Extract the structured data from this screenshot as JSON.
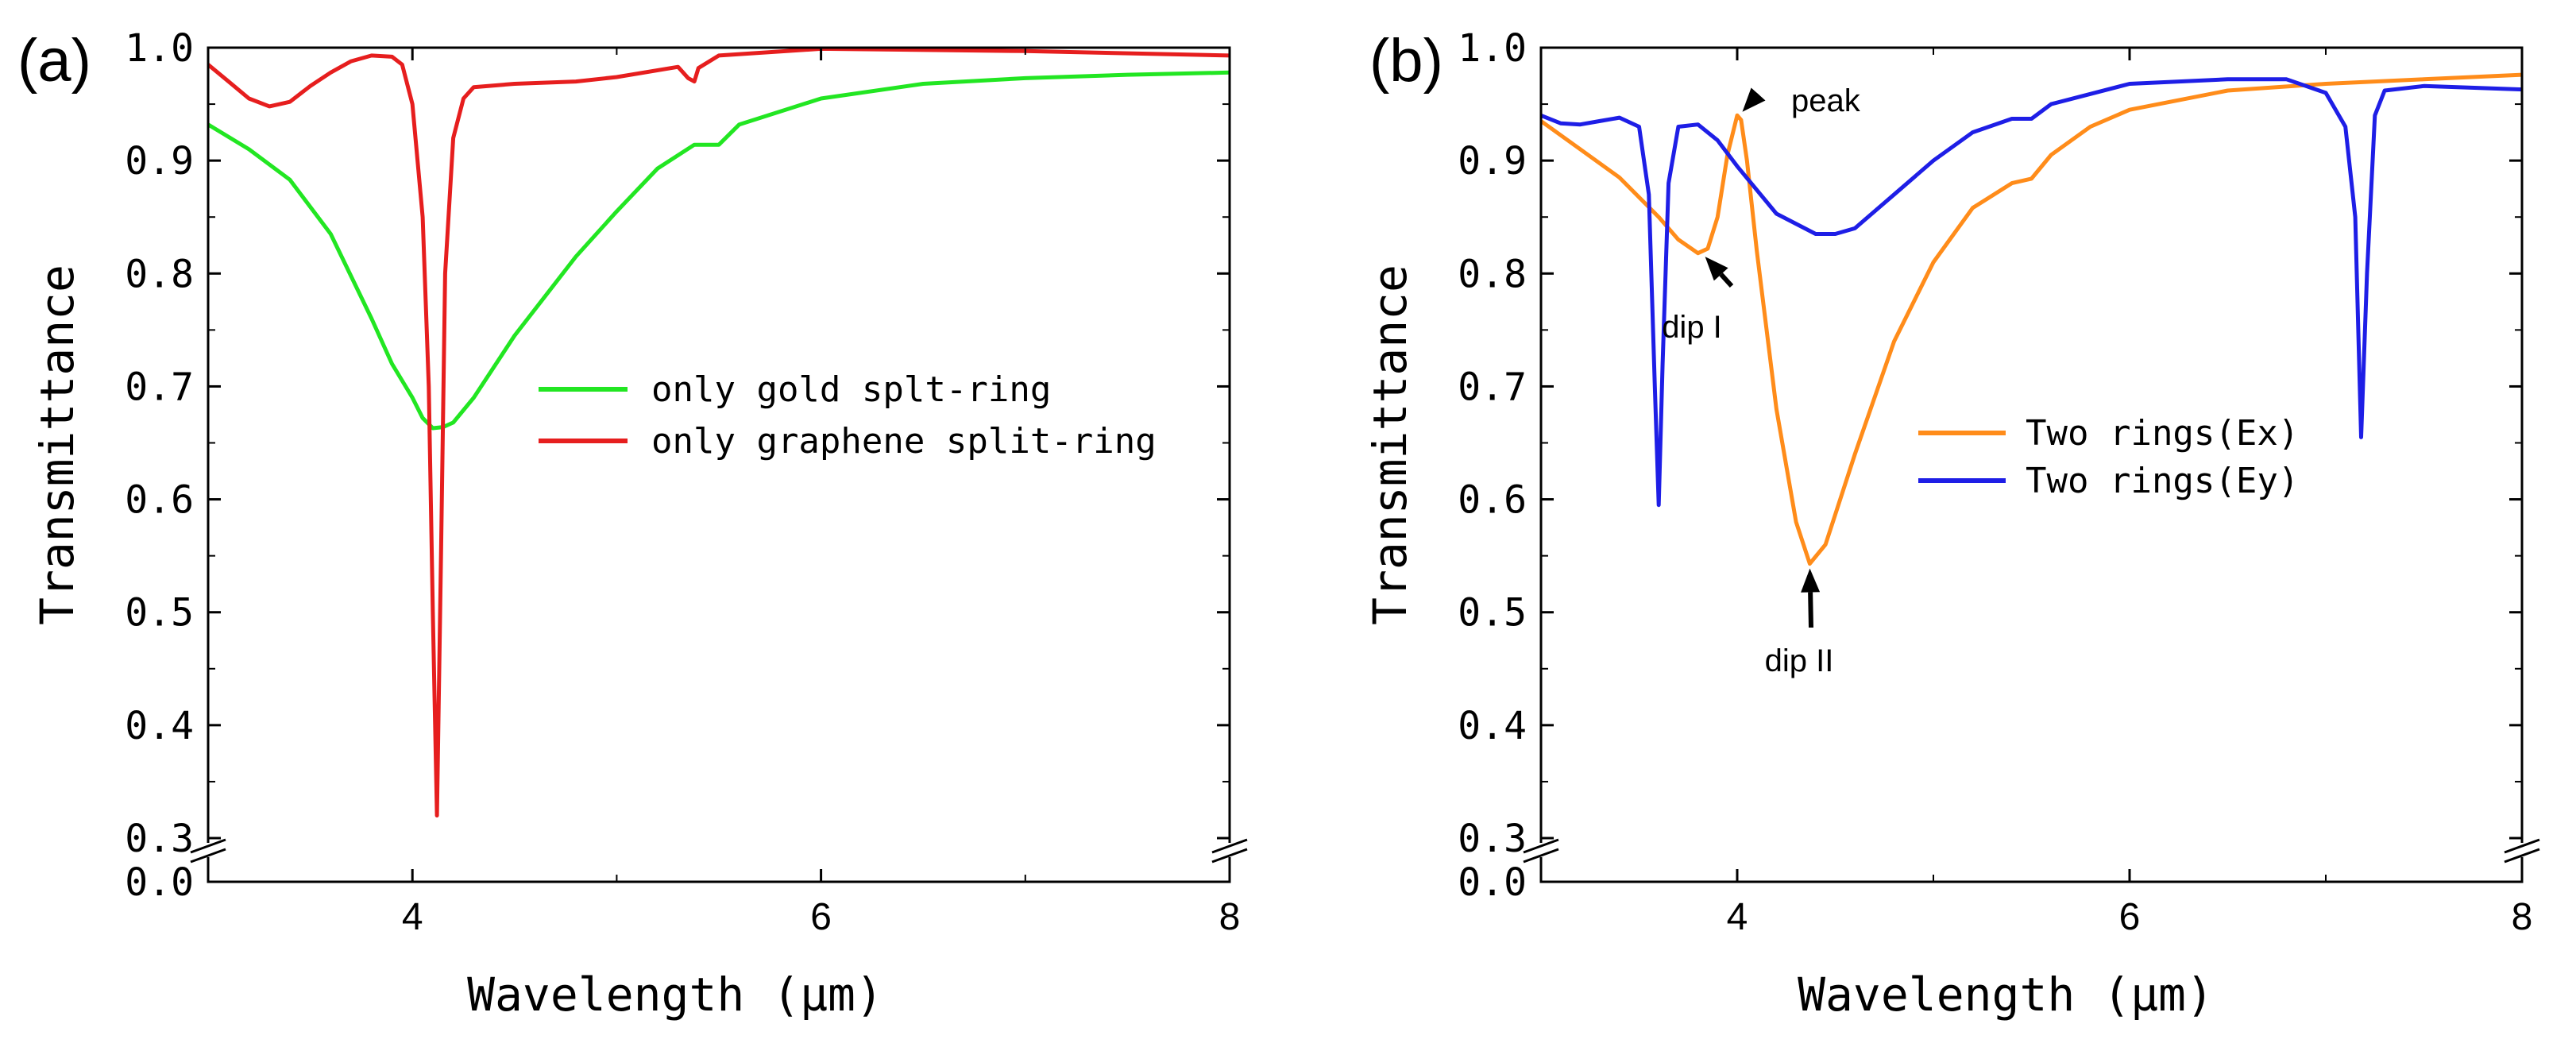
{
  "chart_data": [
    {
      "panel_label": "(a)",
      "type": "line",
      "xlabel": "Wavelength (μm)",
      "ylabel": "Transmittance",
      "xlim": [
        3,
        8
      ],
      "ylim_upper": [
        0.3,
        1.0
      ],
      "ylim_lower": [
        0.0,
        0.0
      ],
      "axis_break": true,
      "x_ticks": [
        4,
        6,
        8
      ],
      "x_tick_labels": [
        "4",
        "6",
        "8"
      ],
      "y_ticks": [
        0.0,
        0.3,
        0.4,
        0.5,
        0.6,
        0.7,
        0.8,
        0.9,
        1.0
      ],
      "y_tick_labels": [
        "0.0",
        "0.3",
        "0.4",
        "0.5",
        "0.6",
        "0.7",
        "0.8",
        "0.9",
        "1.0"
      ],
      "legend": {
        "placement": "center-right",
        "entries": [
          "only gold splt-ring",
          "only graphene split-ring"
        ]
      },
      "series": [
        {
          "name": "only gold splt-ring",
          "color": "#22e622",
          "x": [
            3.0,
            3.2,
            3.4,
            3.6,
            3.8,
            3.9,
            4.0,
            4.05,
            4.1,
            4.15,
            4.2,
            4.3,
            4.5,
            4.8,
            5.0,
            5.2,
            5.38,
            5.5,
            5.6,
            6.0,
            6.5,
            7.0,
            7.5,
            8.0
          ],
          "y": [
            0.932,
            0.91,
            0.883,
            0.835,
            0.76,
            0.72,
            0.69,
            0.672,
            0.663,
            0.664,
            0.668,
            0.69,
            0.745,
            0.815,
            0.855,
            0.893,
            0.914,
            0.914,
            0.932,
            0.955,
            0.968,
            0.973,
            0.976,
            0.978
          ]
        },
        {
          "name": "only graphene split-ring",
          "color": "#e61e1e",
          "x": [
            3.0,
            3.1,
            3.2,
            3.3,
            3.4,
            3.5,
            3.6,
            3.7,
            3.8,
            3.9,
            3.95,
            4.0,
            4.05,
            4.08,
            4.1,
            4.12,
            4.14,
            4.16,
            4.2,
            4.25,
            4.3,
            4.5,
            4.8,
            5.0,
            5.3,
            5.35,
            5.38,
            5.4,
            5.5,
            6.0,
            7.0,
            8.0
          ],
          "y": [
            0.985,
            0.97,
            0.955,
            0.948,
            0.952,
            0.966,
            0.978,
            0.988,
            0.993,
            0.992,
            0.985,
            0.95,
            0.85,
            0.7,
            0.5,
            0.32,
            0.55,
            0.8,
            0.92,
            0.955,
            0.965,
            0.968,
            0.97,
            0.974,
            0.983,
            0.973,
            0.97,
            0.982,
            0.993,
            0.999,
            0.997,
            0.993
          ]
        }
      ],
      "annotations": []
    },
    {
      "panel_label": "(b)",
      "type": "line",
      "xlabel": "Wavelength (μm)",
      "ylabel": "Transmittance",
      "xlim": [
        3,
        8
      ],
      "ylim_upper": [
        0.3,
        1.0
      ],
      "ylim_lower": [
        0.0,
        0.0
      ],
      "axis_break": true,
      "x_ticks": [
        4,
        6,
        8
      ],
      "x_tick_labels": [
        "4",
        "6",
        "8"
      ],
      "y_ticks": [
        0.0,
        0.3,
        0.4,
        0.5,
        0.6,
        0.7,
        0.8,
        0.9,
        1.0
      ],
      "y_tick_labels": [
        "0.0",
        "0.3",
        "0.4",
        "0.5",
        "0.6",
        "0.7",
        "0.8",
        "0.9",
        "1.0"
      ],
      "legend": {
        "placement": "center-right",
        "entries": [
          "Two rings(Ex)",
          "Two rings(Ey)"
        ]
      },
      "series": [
        {
          "name": "Two rings(Ex)",
          "color": "#ff8c1a",
          "x": [
            3.0,
            3.2,
            3.4,
            3.6,
            3.7,
            3.8,
            3.85,
            3.9,
            3.95,
            4.0,
            4.02,
            4.05,
            4.1,
            4.2,
            4.3,
            4.37,
            4.45,
            4.6,
            4.8,
            5.0,
            5.2,
            5.4,
            5.5,
            5.6,
            5.8,
            6.0,
            6.5,
            7.0,
            7.5,
            8.0
          ],
          "y": [
            0.935,
            0.91,
            0.885,
            0.85,
            0.83,
            0.818,
            0.822,
            0.85,
            0.905,
            0.94,
            0.936,
            0.9,
            0.82,
            0.68,
            0.58,
            0.543,
            0.56,
            0.64,
            0.74,
            0.81,
            0.858,
            0.88,
            0.884,
            0.905,
            0.93,
            0.945,
            0.962,
            0.968,
            0.972,
            0.976
          ]
        },
        {
          "name": "Two rings(Ey)",
          "color": "#1e1ee6",
          "x": [
            3.0,
            3.1,
            3.2,
            3.3,
            3.4,
            3.5,
            3.55,
            3.58,
            3.6,
            3.62,
            3.65,
            3.7,
            3.8,
            3.9,
            4.0,
            4.2,
            4.4,
            4.5,
            4.6,
            4.8,
            5.0,
            5.2,
            5.4,
            5.5,
            5.6,
            6.0,
            6.5,
            6.8,
            7.0,
            7.1,
            7.15,
            7.18,
            7.21,
            7.25,
            7.3,
            7.5,
            8.0
          ],
          "y": [
            0.94,
            0.933,
            0.932,
            0.935,
            0.938,
            0.93,
            0.87,
            0.7,
            0.595,
            0.72,
            0.88,
            0.93,
            0.932,
            0.918,
            0.895,
            0.853,
            0.835,
            0.835,
            0.84,
            0.87,
            0.9,
            0.925,
            0.937,
            0.937,
            0.95,
            0.968,
            0.972,
            0.972,
            0.96,
            0.93,
            0.85,
            0.655,
            0.8,
            0.94,
            0.962,
            0.966,
            0.963
          ]
        }
      ],
      "annotations": [
        {
          "text": "peak",
          "x": 4.01,
          "y": 0.94
        },
        {
          "text": "dip I",
          "x": 3.82,
          "y": 0.818
        },
        {
          "text": "dip II",
          "x": 4.37,
          "y": 0.543
        }
      ]
    }
  ]
}
